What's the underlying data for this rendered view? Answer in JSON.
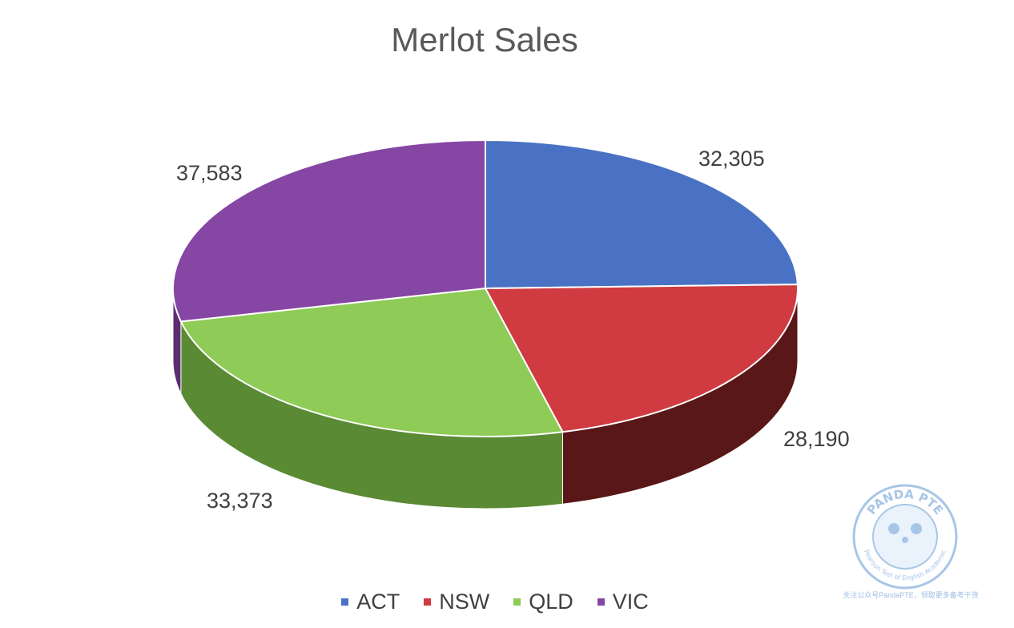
{
  "chart_data": {
    "type": "pie",
    "title": "Merlot Sales",
    "categories": [
      "ACT",
      "NSW",
      "QLD",
      "VIC"
    ],
    "values": [
      32305,
      28190,
      33373,
      37583
    ],
    "value_labels": [
      "32,305",
      "28,190",
      "33,373",
      "37,583"
    ],
    "colors": [
      "#4a72c4",
      "#d03a41",
      "#8ecb57",
      "#8646a4"
    ],
    "side_colors": [
      "#2d4a86",
      "#5a1717",
      "#5a8a34",
      "#5a2c70"
    ],
    "legend_position": "bottom",
    "style": "3d"
  },
  "watermark": {
    "brand": "PANDA PTE",
    "tagline": "Pearson Test of English Academic",
    "caption": "关注公众号PandaPTE，领取更多备考干货"
  }
}
